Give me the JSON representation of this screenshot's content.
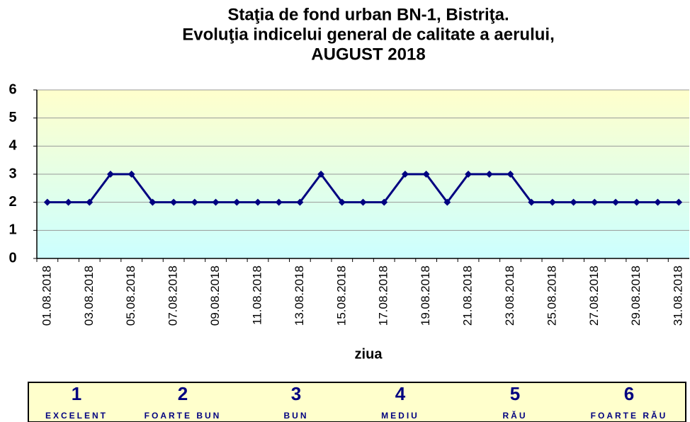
{
  "chart_data": {
    "type": "line",
    "title": [
      "Staţia de fond urban BN-1, Bistriţa.",
      "Evoluţia indicelui general de calitate a aerului,",
      "AUGUST 2018"
    ],
    "x_label": "ziua",
    "categories": [
      "01.08.2018",
      null,
      "03.08.2018",
      null,
      "05.08.2018",
      null,
      "07.08.2018",
      null,
      "09.08.2018",
      null,
      "11.08.2018",
      null,
      "13.08.2018",
      null,
      "15.08.2018",
      null,
      "17.08.2018",
      null,
      "19.08.2018",
      null,
      "21.08.2018",
      null,
      "23.08.2018",
      null,
      "25.08.2018",
      null,
      "27.08.2018",
      null,
      "29.08.2018",
      null,
      "31.08.2018"
    ],
    "series": [
      {
        "color": "#000080",
        "values": [
          2,
          2,
          2,
          3,
          3,
          2,
          2,
          2,
          2,
          2,
          2,
          2,
          2,
          3,
          2,
          2,
          2,
          3,
          3,
          2,
          3,
          3,
          3,
          2,
          2,
          2,
          2,
          2,
          2,
          2,
          2
        ]
      }
    ],
    "ylim": [
      0,
      6
    ],
    "yticks": [
      0,
      1,
      2,
      3,
      4,
      5,
      6
    ],
    "grid": true,
    "legend_scale": [
      {
        "value": 1,
        "label": "EXCELENT"
      },
      {
        "value": 2,
        "label": "FOARTE BUN"
      },
      {
        "value": 3,
        "label": "BUN"
      },
      {
        "value": 4,
        "label": "MEDIU"
      },
      {
        "value": 5,
        "label": "RĂU"
      },
      {
        "value": 6,
        "label": "FOARTE RĂU"
      }
    ]
  }
}
